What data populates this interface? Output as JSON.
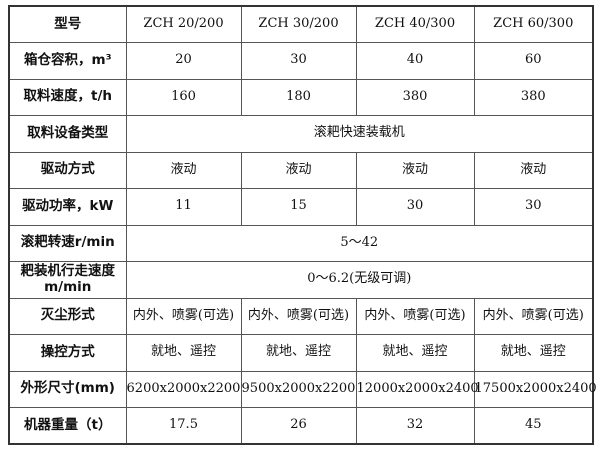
{
  "table": {
    "rows": [
      {
        "label": "型号",
        "cells": [
          "ZCH 20/200",
          "ZCH 30/200",
          "ZCH 40/300",
          "ZCH 60/300"
        ]
      },
      {
        "label": "箱仓容积，m³",
        "cells": [
          "20",
          "30",
          "40",
          "60"
        ]
      },
      {
        "label": "取料速度，t/h",
        "cells": [
          "160",
          "180",
          "380",
          "380"
        ]
      },
      {
        "label": "取料设备类型",
        "merged": "滚耙快速装载机"
      },
      {
        "label": "驱动方式",
        "cells": [
          "液动",
          "液动",
          "液动",
          "液动"
        ]
      },
      {
        "label": "驱动功率，kW",
        "cells": [
          "11",
          "15",
          "30",
          "30"
        ]
      },
      {
        "label": "滚耙转速r/min",
        "merged": "5～42"
      },
      {
        "label": "耙装机行走速度m/min",
        "merged": "0～6.2(无级可调)"
      },
      {
        "label": "灭尘形式",
        "cells": [
          "内外、喷雾(可选)",
          "内外、喷雾(可选)",
          "内外、喷雾(可选)",
          "内外、喷雾(可选)"
        ]
      },
      {
        "label": "操控方式",
        "cells": [
          "就地、遥控",
          "就地、遥控",
          "就地、遥控",
          "就地、遥控"
        ]
      },
      {
        "label": "外形尺寸(mm)",
        "cells": [
          "6200x2000x2200",
          "9500x2000x2200",
          "12000x2000x2400",
          "17500x2000x2400"
        ]
      },
      {
        "label": "机器重量（t）",
        "cells": [
          "17.5",
          "26",
          "32",
          "45"
        ]
      }
    ]
  }
}
